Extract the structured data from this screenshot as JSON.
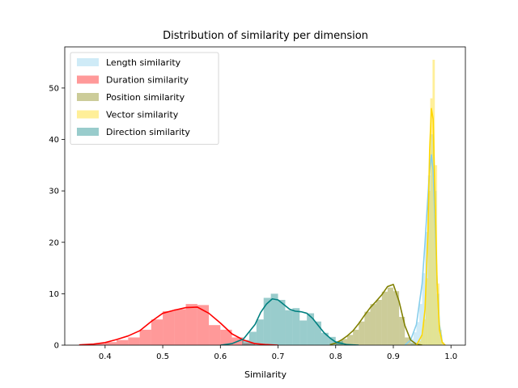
{
  "chart_data": {
    "type": "histogram-kde",
    "title": "Distribution of similarity per dimension",
    "xlabel": "Similarity",
    "ylabel": "",
    "xlim": [
      0.33,
      1.025
    ],
    "ylim": [
      0,
      58
    ],
    "xticks": [
      0.4,
      0.5,
      0.6,
      0.7,
      0.8,
      0.9,
      1.0
    ],
    "xtick_labels": [
      "0.4",
      "0.5",
      "0.6",
      "0.7",
      "0.8",
      "0.9",
      "1.0"
    ],
    "yticks": [
      0,
      10,
      20,
      30,
      40,
      50
    ],
    "ytick_labels": [
      "0",
      "10",
      "20",
      "30",
      "40",
      "50"
    ],
    "grid": false,
    "legend": "upper-left",
    "series": [
      {
        "name": "Length similarity",
        "color": "#87CEEB",
        "bin_width": 0.005,
        "bins": [
          {
            "x": 0.93,
            "h": 1.2
          },
          {
            "x": 0.935,
            "h": 2.5
          },
          {
            "x": 0.94,
            "h": 4.5
          },
          {
            "x": 0.945,
            "h": 8.0
          },
          {
            "x": 0.95,
            "h": 14.0
          },
          {
            "x": 0.955,
            "h": 22.0
          },
          {
            "x": 0.96,
            "h": 33.0
          },
          {
            "x": 0.965,
            "h": 41.0
          },
          {
            "x": 0.97,
            "h": 30.0
          },
          {
            "x": 0.975,
            "h": 10.0
          },
          {
            "x": 0.98,
            "h": 2.0
          }
        ],
        "kde": [
          [
            0.92,
            0.0
          ],
          [
            0.93,
            1.0
          ],
          [
            0.94,
            4.0
          ],
          [
            0.95,
            12.0
          ],
          [
            0.955,
            20.0
          ],
          [
            0.96,
            29.0
          ],
          [
            0.963,
            34.0
          ],
          [
            0.966,
            37.0
          ],
          [
            0.969,
            34.0
          ],
          [
            0.972,
            25.0
          ],
          [
            0.976,
            12.0
          ],
          [
            0.98,
            4.0
          ],
          [
            0.985,
            0.5
          ],
          [
            0.99,
            0.0
          ]
        ]
      },
      {
        "name": "Duration similarity",
        "color": "#FF0000",
        "bin_width": 0.02,
        "bins": [
          {
            "x": 0.36,
            "h": 0.2
          },
          {
            "x": 0.38,
            "h": 0.3
          },
          {
            "x": 0.4,
            "h": 0.6
          },
          {
            "x": 0.42,
            "h": 1.0
          },
          {
            "x": 0.44,
            "h": 1.5
          },
          {
            "x": 0.46,
            "h": 3.0
          },
          {
            "x": 0.48,
            "h": 5.0
          },
          {
            "x": 0.5,
            "h": 6.6
          },
          {
            "x": 0.52,
            "h": 7.0
          },
          {
            "x": 0.54,
            "h": 8.0
          },
          {
            "x": 0.56,
            "h": 7.8
          },
          {
            "x": 0.58,
            "h": 3.9
          },
          {
            "x": 0.6,
            "h": 3.0
          },
          {
            "x": 0.62,
            "h": 1.5
          },
          {
            "x": 0.64,
            "h": 0.4
          }
        ],
        "kde": [
          [
            0.355,
            0.05
          ],
          [
            0.38,
            0.2
          ],
          [
            0.4,
            0.5
          ],
          [
            0.42,
            1.1
          ],
          [
            0.44,
            1.8
          ],
          [
            0.46,
            2.8
          ],
          [
            0.48,
            4.6
          ],
          [
            0.5,
            6.2
          ],
          [
            0.52,
            6.8
          ],
          [
            0.54,
            7.3
          ],
          [
            0.56,
            7.4
          ],
          [
            0.58,
            6.2
          ],
          [
            0.6,
            4.3
          ],
          [
            0.62,
            2.2
          ],
          [
            0.64,
            1.0
          ],
          [
            0.66,
            0.3
          ],
          [
            0.68,
            0.1
          ],
          [
            0.7,
            0.0
          ]
        ]
      },
      {
        "name": "Position similarity",
        "color": "#808000",
        "bin_width": 0.01,
        "bins": [
          {
            "x": 0.8,
            "h": 0.6
          },
          {
            "x": 0.81,
            "h": 1.2
          },
          {
            "x": 0.82,
            "h": 2.0
          },
          {
            "x": 0.83,
            "h": 3.0
          },
          {
            "x": 0.84,
            "h": 4.6
          },
          {
            "x": 0.85,
            "h": 6.5
          },
          {
            "x": 0.86,
            "h": 8.0
          },
          {
            "x": 0.87,
            "h": 8.8
          },
          {
            "x": 0.88,
            "h": 10.4
          },
          {
            "x": 0.89,
            "h": 11.2
          },
          {
            "x": 0.9,
            "h": 10.5
          },
          {
            "x": 0.91,
            "h": 5.5
          },
          {
            "x": 0.92,
            "h": 1.5
          },
          {
            "x": 0.93,
            "h": 0.4
          }
        ],
        "kde": [
          [
            0.79,
            0.1
          ],
          [
            0.8,
            0.4
          ],
          [
            0.81,
            1.0
          ],
          [
            0.82,
            1.8
          ],
          [
            0.83,
            2.8
          ],
          [
            0.84,
            4.2
          ],
          [
            0.85,
            5.8
          ],
          [
            0.86,
            7.3
          ],
          [
            0.87,
            8.5
          ],
          [
            0.88,
            9.8
          ],
          [
            0.89,
            11.4
          ],
          [
            0.9,
            11.8
          ],
          [
            0.91,
            8.5
          ],
          [
            0.92,
            3.8
          ],
          [
            0.93,
            1.0
          ],
          [
            0.94,
            0.2
          ],
          [
            0.95,
            0.0
          ]
        ]
      },
      {
        "name": "Vector similarity",
        "color": "#FFD700",
        "bin_width": 0.004,
        "bins": [
          {
            "x": 0.944,
            "h": 0.8
          },
          {
            "x": 0.948,
            "h": 2.0
          },
          {
            "x": 0.952,
            "h": 5.0
          },
          {
            "x": 0.956,
            "h": 13.0
          },
          {
            "x": 0.96,
            "h": 30.0
          },
          {
            "x": 0.964,
            "h": 48.0
          },
          {
            "x": 0.968,
            "h": 55.5
          },
          {
            "x": 0.972,
            "h": 35.0
          },
          {
            "x": 0.976,
            "h": 12.0
          },
          {
            "x": 0.98,
            "h": 3.0
          },
          {
            "x": 0.984,
            "h": 0.6
          }
        ],
        "kde": [
          [
            0.94,
            0.0
          ],
          [
            0.95,
            2.0
          ],
          [
            0.955,
            7.0
          ],
          [
            0.96,
            22.0
          ],
          [
            0.963,
            38.0
          ],
          [
            0.966,
            46.0
          ],
          [
            0.969,
            44.0
          ],
          [
            0.972,
            30.0
          ],
          [
            0.976,
            12.0
          ],
          [
            0.98,
            3.0
          ],
          [
            0.985,
            0.5
          ],
          [
            0.99,
            0.0
          ]
        ]
      },
      {
        "name": "Direction similarity",
        "color": "#008080",
        "bin_width": 0.0125,
        "bins": [
          {
            "x": 0.6375,
            "h": 1.0
          },
          {
            "x": 0.65,
            "h": 2.6
          },
          {
            "x": 0.6625,
            "h": 5.0
          },
          {
            "x": 0.675,
            "h": 9.2
          },
          {
            "x": 0.6875,
            "h": 10.0
          },
          {
            "x": 0.7,
            "h": 8.8
          },
          {
            "x": 0.7125,
            "h": 6.8
          },
          {
            "x": 0.725,
            "h": 7.2
          },
          {
            "x": 0.7375,
            "h": 4.8
          },
          {
            "x": 0.75,
            "h": 6.2
          },
          {
            "x": 0.7625,
            "h": 4.6
          },
          {
            "x": 0.775,
            "h": 2.4
          },
          {
            "x": 0.7875,
            "h": 1.6
          },
          {
            "x": 0.8,
            "h": 0.8
          }
        ],
        "kde": [
          [
            0.6,
            0.0
          ],
          [
            0.62,
            0.3
          ],
          [
            0.64,
            1.2
          ],
          [
            0.66,
            4.0
          ],
          [
            0.67,
            6.4
          ],
          [
            0.68,
            8.0
          ],
          [
            0.69,
            9.0
          ],
          [
            0.7,
            8.8
          ],
          [
            0.71,
            7.9
          ],
          [
            0.72,
            7.0
          ],
          [
            0.73,
            6.6
          ],
          [
            0.74,
            6.5
          ],
          [
            0.75,
            6.2
          ],
          [
            0.76,
            5.2
          ],
          [
            0.77,
            3.8
          ],
          [
            0.78,
            2.4
          ],
          [
            0.79,
            1.4
          ],
          [
            0.8,
            0.6
          ],
          [
            0.82,
            0.1
          ],
          [
            0.84,
            0.0
          ]
        ]
      }
    ]
  }
}
